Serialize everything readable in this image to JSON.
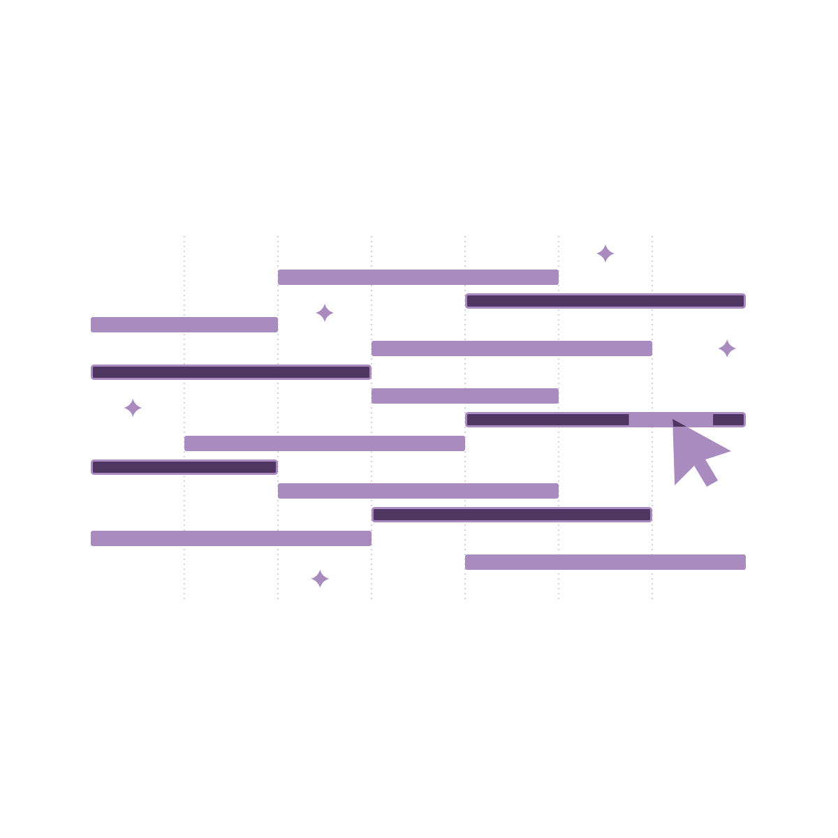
{
  "palette": {
    "light_bar": "#a98bc0",
    "dark_bar": "#4e3660",
    "bar_outline": "#a98bc0",
    "grid_line": "#c9c3d2",
    "sparkle": "#a98bc0",
    "cursor": "#a98bc0",
    "background": "#ffffff"
  },
  "icons": {
    "cursor": "mouse-pointer-icon",
    "sparkle": "sparkle-icon"
  },
  "chart_data": {
    "type": "gantt",
    "time_columns": 7,
    "grid_lines_at": [
      1,
      2,
      3,
      4,
      5,
      6
    ],
    "rows": [
      {
        "start": 2,
        "end": 5,
        "style": "light"
      },
      {
        "start": 4,
        "end": 7,
        "style": "dark"
      },
      {
        "start": 0,
        "end": 2,
        "style": "light"
      },
      {
        "start": 3,
        "end": 6,
        "style": "light"
      },
      {
        "start": 0,
        "end": 3,
        "style": "dark"
      },
      {
        "start": 3,
        "end": 5,
        "style": "light"
      },
      {
        "start": 4,
        "end": 7,
        "style": "dark",
        "highlight": {
          "start": 5.75,
          "end": 6.65
        },
        "has_cursor": true
      },
      {
        "start": 1,
        "end": 4,
        "style": "light"
      },
      {
        "start": 0,
        "end": 2,
        "style": "dark"
      },
      {
        "start": 2,
        "end": 5,
        "style": "light"
      },
      {
        "start": 3,
        "end": 6,
        "style": "dark"
      },
      {
        "start": 0,
        "end": 3,
        "style": "light"
      },
      {
        "start": 4,
        "end": 7,
        "style": "light"
      }
    ],
    "sparkles": [
      {
        "col": 5.5,
        "row": -1
      },
      {
        "col": 2.5,
        "row": 1.5
      },
      {
        "col": 6.8,
        "row": 3.0
      },
      {
        "col": 0.45,
        "row": 5.5
      },
      {
        "col": 2.45,
        "row": 12.7
      }
    ]
  }
}
